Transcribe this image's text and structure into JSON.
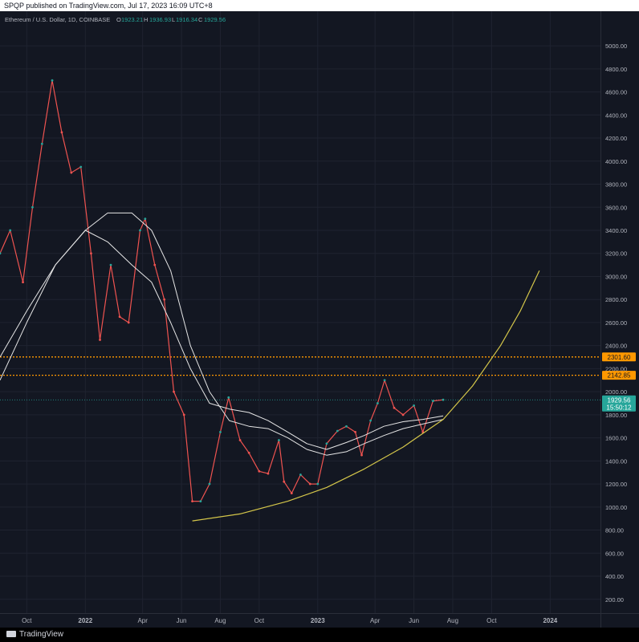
{
  "publish_line": "SPQP published on TradingView.com, Jul 17, 2023 16:09 UTC+8",
  "footer_brand": "TradingView",
  "legend": {
    "symbol": "Ethereum / U.S. Dollar, 1D, COINBASE",
    "open_label": "O",
    "open": "1923.21",
    "high_label": "H",
    "high": "1936.93",
    "low_label": "L",
    "low": "1916.34",
    "close_label": "C",
    "close": "1929.56"
  },
  "price_tags": {
    "level_upper": "2301.60",
    "level_lower": "2142.85",
    "last_price": "1929.56",
    "countdown": "15:50:12"
  },
  "colors": {
    "background": "#131722",
    "up": "#26a69a",
    "down": "#ef5350",
    "level_line": "#ff9800",
    "curve": "#d4c64a",
    "ma": "#e6e6e6"
  },
  "chart_data": {
    "type": "line",
    "title": "Ethereum / U.S. Dollar, 1D, COINBASE",
    "xlabel": "",
    "ylabel": "",
    "y_ticks": [
      200,
      400,
      600,
      800,
      1000,
      1200,
      1400,
      1600,
      1800,
      2000,
      2200,
      2400,
      2600,
      2800,
      3000,
      3200,
      3400,
      3600,
      3800,
      4000,
      4200,
      4400,
      4600,
      4800,
      5000
    ],
    "y_tick_labels": [
      "200.00",
      "400.00",
      "600.00",
      "800.00",
      "1000.00",
      "1200.00",
      "1400.00",
      "1600.00",
      "1800.00",
      "2000.00",
      "2200.00",
      "2400.00",
      "2600.00",
      "2800.00",
      "3000.00",
      "3200.00",
      "3400.00",
      "3600.00",
      "3800.00",
      "4000.00",
      "4200.00",
      "4400.00",
      "4600.00",
      "4800.00",
      "5000.00"
    ],
    "x_ticks": [
      {
        "date": "2021-10-01",
        "label": "Oct"
      },
      {
        "date": "2022-01-01",
        "label": "2022"
      },
      {
        "date": "2022-04-01",
        "label": "Apr"
      },
      {
        "date": "2022-06-01",
        "label": "Jun"
      },
      {
        "date": "2022-08-01",
        "label": "Aug"
      },
      {
        "date": "2022-10-01",
        "label": "Oct"
      },
      {
        "date": "2023-01-01",
        "label": "2023"
      },
      {
        "date": "2023-04-01",
        "label": "Apr"
      },
      {
        "date": "2023-06-01",
        "label": "Jun"
      },
      {
        "date": "2023-08-01",
        "label": "Aug"
      },
      {
        "date": "2023-10-01",
        "label": "Oct"
      },
      {
        "date": "2024-01-01",
        "label": "2024"
      }
    ],
    "x_range": [
      "2021-08-20",
      "2024-03-20"
    ],
    "ylim": [
      80,
      5300
    ],
    "grid": true,
    "horizontal_levels": [
      2301.6,
      2142.85
    ],
    "last_price": 1929.56,
    "series": [
      {
        "type": "line",
        "x": [
          "2021-08-20",
          "2021-09-05",
          "2021-09-25",
          "2021-10-10",
          "2021-10-25",
          "2021-11-10",
          "2021-11-25",
          "2021-12-10",
          "2021-12-25",
          "2022-01-10",
          "2022-01-24",
          "2022-02-10",
          "2022-02-24",
          "2022-03-10",
          "2022-03-28",
          "2022-04-05",
          "2022-04-20",
          "2022-05-05",
          "2022-05-20",
          "2022-06-05",
          "2022-06-18",
          "2022-07-01",
          "2022-07-15",
          "2022-08-01",
          "2022-08-14",
          "2022-09-01",
          "2022-09-15",
          "2022-10-01",
          "2022-10-15",
          "2022-11-01",
          "2022-11-09",
          "2022-11-21",
          "2022-12-05",
          "2022-12-20",
          "2023-01-01",
          "2023-01-15",
          "2023-02-01",
          "2023-02-15",
          "2023-03-01",
          "2023-03-11",
          "2023-03-25",
          "2023-04-05",
          "2023-04-16",
          "2023-05-01",
          "2023-05-15",
          "2023-06-01",
          "2023-06-15",
          "2023-07-01",
          "2023-07-17"
        ],
        "values": [
          3200,
          3400,
          2950,
          3600,
          4150,
          4700,
          4250,
          3900,
          3950,
          3200,
          2450,
          3100,
          2650,
          2600,
          3400,
          3500,
          3100,
          2800,
          2000,
          1800,
          1050,
          1050,
          1200,
          1650,
          1950,
          1580,
          1470,
          1310,
          1290,
          1580,
          1220,
          1120,
          1280,
          1200,
          1200,
          1550,
          1660,
          1700,
          1650,
          1450,
          1750,
          1900,
          2100,
          1860,
          1800,
          1880,
          1650,
          1920,
          1930
        ]
      },
      {
        "type": "line",
        "x": [
          "2021-08-20",
          "2021-10-01",
          "2021-11-15",
          "2022-01-01",
          "2022-02-05",
          "2022-03-15",
          "2022-04-15",
          "2022-05-15",
          "2022-06-15",
          "2022-07-15",
          "2022-08-15",
          "2022-09-15",
          "2022-10-15",
          "2022-11-15",
          "2022-12-15",
          "2023-01-15",
          "2023-02-15",
          "2023-03-15",
          "2023-04-15",
          "2023-05-15",
          "2023-06-15",
          "2023-07-17"
        ],
        "values": [
          2100,
          2600,
          3100,
          3400,
          3550,
          3550,
          3400,
          3050,
          2400,
          2000,
          1750,
          1700,
          1680,
          1600,
          1500,
          1450,
          1480,
          1550,
          1620,
          1680,
          1720,
          1760
        ]
      },
      {
        "type": "line",
        "x": [
          "2021-08-20",
          "2021-10-01",
          "2021-11-15",
          "2022-01-01",
          "2022-02-05",
          "2022-03-15",
          "2022-04-15",
          "2022-05-15",
          "2022-06-15",
          "2022-07-15",
          "2022-08-15",
          "2022-09-15",
          "2022-10-15",
          "2022-11-15",
          "2022-12-15",
          "2023-01-15",
          "2023-02-15",
          "2023-03-15",
          "2023-04-15",
          "2023-05-15",
          "2023-06-15",
          "2023-07-17"
        ],
        "values": [
          2300,
          2700,
          3100,
          3400,
          3300,
          3100,
          2950,
          2600,
          2200,
          1900,
          1850,
          1820,
          1750,
          1650,
          1550,
          1500,
          1560,
          1620,
          1700,
          1740,
          1760,
          1790
        ]
      },
      {
        "type": "line",
        "x": [
          "2022-06-18",
          "2022-09-01",
          "2022-11-15",
          "2023-01-15",
          "2023-03-15",
          "2023-05-15",
          "2023-07-17",
          "2023-09-01",
          "2023-10-15",
          "2023-11-15",
          "2023-12-15"
        ],
        "values": [
          880,
          940,
          1050,
          1170,
          1330,
          1520,
          1760,
          2050,
          2400,
          2700,
          3050
        ]
      }
    ]
  }
}
